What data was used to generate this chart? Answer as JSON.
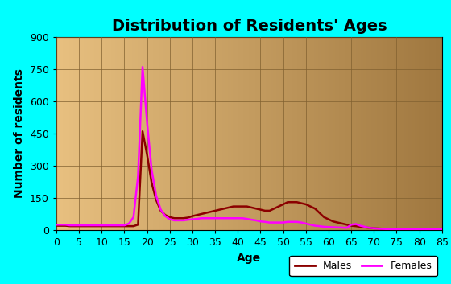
{
  "title": "Distribution of Residents' Ages",
  "xlabel": "Age",
  "ylabel": "Number of residents",
  "xlim": [
    0,
    85
  ],
  "ylim": [
    0,
    900
  ],
  "xticks": [
    0,
    5,
    10,
    15,
    20,
    25,
    30,
    35,
    40,
    45,
    50,
    55,
    60,
    65,
    70,
    75,
    80,
    85
  ],
  "yticks": [
    0,
    150,
    300,
    450,
    600,
    750,
    900
  ],
  "background_outer": "#00ffff",
  "background_inner_left": "#e8c080",
  "background_inner_right": "#a07840",
  "male_color": "#8b0000",
  "female_color": "#ff00ff",
  "males_ages": [
    0,
    1,
    2,
    3,
    4,
    5,
    6,
    7,
    8,
    9,
    10,
    11,
    12,
    13,
    14,
    15,
    16,
    17,
    18,
    19,
    20,
    21,
    22,
    23,
    24,
    25,
    26,
    27,
    28,
    29,
    30,
    31,
    32,
    33,
    34,
    35,
    36,
    37,
    38,
    39,
    40,
    41,
    42,
    43,
    44,
    45,
    46,
    47,
    48,
    49,
    50,
    51,
    52,
    53,
    54,
    55,
    56,
    57,
    58,
    59,
    60,
    61,
    62,
    63,
    64,
    65,
    66,
    67,
    68,
    69,
    70,
    71,
    72,
    73,
    74,
    75,
    76,
    77,
    78,
    79,
    80,
    81,
    82,
    83,
    84,
    85
  ],
  "males_vals": [
    20,
    20,
    20,
    18,
    18,
    18,
    18,
    18,
    18,
    18,
    18,
    18,
    18,
    18,
    18,
    18,
    18,
    18,
    25,
    460,
    350,
    220,
    140,
    90,
    70,
    60,
    55,
    55,
    55,
    58,
    65,
    70,
    75,
    80,
    85,
    90,
    95,
    100,
    105,
    110,
    110,
    110,
    110,
    105,
    100,
    95,
    90,
    90,
    100,
    110,
    120,
    130,
    130,
    130,
    125,
    120,
    110,
    100,
    80,
    60,
    50,
    40,
    35,
    30,
    25,
    20,
    18,
    15,
    12,
    10,
    8,
    7,
    6,
    5,
    4,
    3,
    3,
    2,
    2,
    2,
    2,
    2,
    2,
    2,
    2,
    2
  ],
  "females_ages": [
    0,
    1,
    2,
    3,
    4,
    5,
    6,
    7,
    8,
    9,
    10,
    11,
    12,
    13,
    14,
    15,
    16,
    17,
    18,
    19,
    20,
    21,
    22,
    23,
    24,
    25,
    26,
    27,
    28,
    29,
    30,
    31,
    32,
    33,
    34,
    35,
    36,
    37,
    38,
    39,
    40,
    41,
    42,
    43,
    44,
    45,
    46,
    47,
    48,
    49,
    50,
    51,
    52,
    53,
    54,
    55,
    56,
    57,
    58,
    59,
    60,
    61,
    62,
    63,
    64,
    65,
    66,
    67,
    68,
    69,
    70,
    71,
    72,
    73,
    74,
    75,
    76,
    77,
    78,
    79,
    80,
    81,
    82,
    83,
    84,
    85
  ],
  "females_vals": [
    25,
    25,
    25,
    22,
    22,
    22,
    22,
    22,
    22,
    22,
    22,
    22,
    22,
    22,
    22,
    22,
    30,
    60,
    250,
    760,
    500,
    280,
    160,
    95,
    65,
    50,
    45,
    45,
    45,
    48,
    50,
    52,
    55,
    55,
    55,
    55,
    55,
    55,
    55,
    55,
    55,
    55,
    52,
    48,
    45,
    40,
    38,
    35,
    35,
    35,
    35,
    38,
    38,
    38,
    35,
    30,
    25,
    20,
    18,
    15,
    14,
    13,
    12,
    11,
    10,
    25,
    28,
    20,
    15,
    10,
    8,
    6,
    5,
    4,
    4,
    3,
    3,
    3,
    3,
    3,
    3,
    3,
    3,
    3,
    3,
    3
  ],
  "legend_ncol": 2,
  "title_fontsize": 14,
  "label_fontsize": 10,
  "tick_fontsize": 9
}
